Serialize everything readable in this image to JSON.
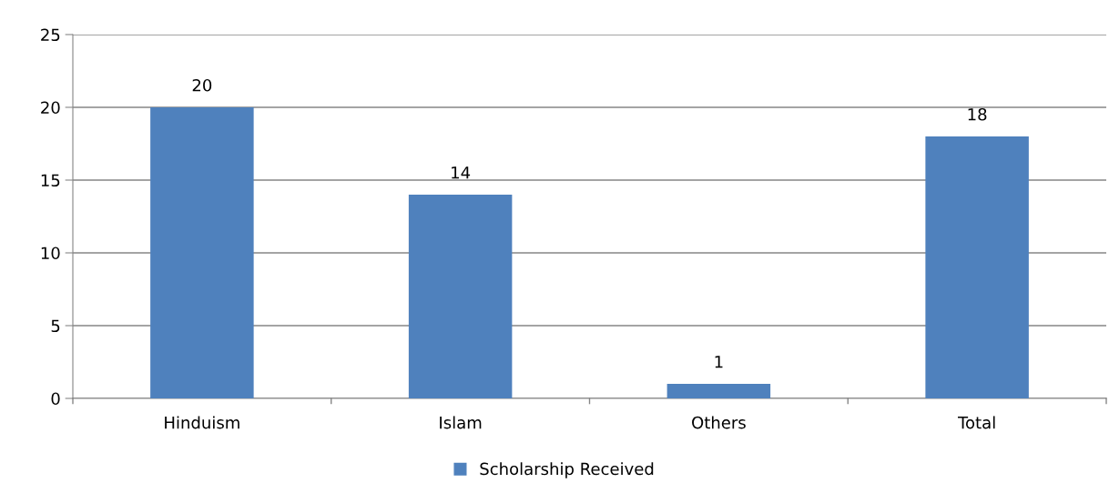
{
  "chart_data": {
    "type": "bar",
    "categories": [
      "Hinduism",
      "Islam",
      "Others",
      "Total"
    ],
    "series": [
      {
        "name": "Scholarship Received",
        "color": "#4f81bd",
        "values": [
          20,
          14,
          1,
          18
        ]
      }
    ],
    "ylim": [
      0,
      25
    ],
    "yticks": [
      0,
      5,
      10,
      15,
      20,
      25
    ],
    "grid": "y",
    "legend": "bottom",
    "data_labels": true
  }
}
